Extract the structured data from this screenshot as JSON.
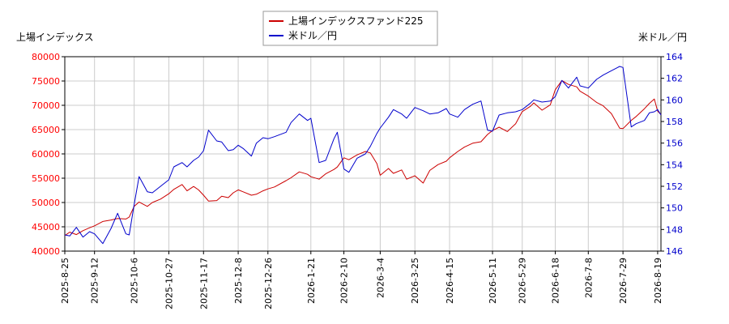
{
  "chart_data": {
    "type": "line",
    "legend_position": "top-center",
    "grid": true,
    "colors": {
      "left_axis": "#ff0000",
      "right_axis": "#0000cc",
      "series_0": "#cc0000",
      "series_1": "#0000cc",
      "grid": "#cccccc",
      "frame": "#000000"
    },
    "left_axis": {
      "title": "上場インデックス",
      "min": 40000,
      "max": 80000,
      "ticks": [
        "40000",
        "45000",
        "50000",
        "55000",
        "60000",
        "65000",
        "70000",
        "75000",
        "80000"
      ]
    },
    "right_axis": {
      "title": "米ドル／円",
      "min": 146,
      "max": 164,
      "ticks": [
        "146",
        "148",
        "150",
        "152",
        "154",
        "156",
        "158",
        "160",
        "162",
        "164"
      ]
    },
    "x_ticks": [
      "2025-8-25",
      "2025-9-12",
      "2025-10-6",
      "2025-10-27",
      "2025-11-17",
      "2025-12-8",
      "2025-12-26",
      "2026-1-21",
      "2026-2-10",
      "2026-3-4",
      "2026-3-25",
      "2026-4-15",
      "2026-5-11",
      "2026-5-29",
      "2026-6-18",
      "2026-7-8",
      "2026-7-29",
      "2026-8-19"
    ],
    "series": [
      {
        "name": "上場インデックスファンド225",
        "axis": "left",
        "points": [
          [
            "2025-8-25",
            43200
          ],
          [
            "2025-8-28",
            43900
          ],
          [
            "2025-9-1",
            43400
          ],
          [
            "2025-9-5",
            44200
          ],
          [
            "2025-9-9",
            44800
          ],
          [
            "2025-9-12",
            45200
          ],
          [
            "2025-9-17",
            46100
          ],
          [
            "2025-9-22",
            46400
          ],
          [
            "2025-9-26",
            46700
          ],
          [
            "2025-10-1",
            46600
          ],
          [
            "2025-10-3",
            47000
          ],
          [
            "2025-10-6",
            49200
          ],
          [
            "2025-10-9",
            50100
          ],
          [
            "2025-10-14",
            49200
          ],
          [
            "2025-10-17",
            50000
          ],
          [
            "2025-10-22",
            50700
          ],
          [
            "2025-10-27",
            51800
          ],
          [
            "2025-10-30",
            52700
          ],
          [
            "2025-11-4",
            53700
          ],
          [
            "2025-11-7",
            52400
          ],
          [
            "2025-11-11",
            53300
          ],
          [
            "2025-11-14",
            52600
          ],
          [
            "2025-11-17",
            51500
          ],
          [
            "2025-11-20",
            50300
          ],
          [
            "2025-11-25",
            50400
          ],
          [
            "2025-11-28",
            51300
          ],
          [
            "2025-12-2",
            51000
          ],
          [
            "2025-12-5",
            52000
          ],
          [
            "2025-12-8",
            52600
          ],
          [
            "2025-12-11",
            52200
          ],
          [
            "2025-12-16",
            51500
          ],
          [
            "2025-12-19",
            51700
          ],
          [
            "2025-12-23",
            52400
          ],
          [
            "2025-12-26",
            52800
          ],
          [
            "2025-12-30",
            53200
          ],
          [
            "2026-1-6",
            54500
          ],
          [
            "2026-1-9",
            55100
          ],
          [
            "2026-1-14",
            56300
          ],
          [
            "2026-1-19",
            55800
          ],
          [
            "2026-1-21",
            55300
          ],
          [
            "2026-1-26",
            54800
          ],
          [
            "2026-1-30",
            55900
          ],
          [
            "2026-2-4",
            56800
          ],
          [
            "2026-2-6",
            57300
          ],
          [
            "2026-2-10",
            59200
          ],
          [
            "2026-2-13",
            58800
          ],
          [
            "2026-2-18",
            59800
          ],
          [
            "2026-2-23",
            60500
          ],
          [
            "2026-2-26",
            60200
          ],
          [
            "2026-3-2",
            58000
          ],
          [
            "2026-3-4",
            55600
          ],
          [
            "2026-3-9",
            57000
          ],
          [
            "2026-3-12",
            56000
          ],
          [
            "2026-3-17",
            56700
          ],
          [
            "2026-3-20",
            54800
          ],
          [
            "2026-3-25",
            55500
          ],
          [
            "2026-3-30",
            54000
          ],
          [
            "2026-4-3",
            56600
          ],
          [
            "2026-4-8",
            57800
          ],
          [
            "2026-4-13",
            58500
          ],
          [
            "2026-4-15",
            59200
          ],
          [
            "2026-4-20",
            60500
          ],
          [
            "2026-4-24",
            61400
          ],
          [
            "2026-4-29",
            62200
          ],
          [
            "2026-5-4",
            62500
          ],
          [
            "2026-5-8",
            64000
          ],
          [
            "2026-5-11",
            64800
          ],
          [
            "2026-5-15",
            65500
          ],
          [
            "2026-5-20",
            64600
          ],
          [
            "2026-5-25",
            66200
          ],
          [
            "2026-5-29",
            68700
          ],
          [
            "2026-6-3",
            69800
          ],
          [
            "2026-6-5",
            70500
          ],
          [
            "2026-6-10",
            69000
          ],
          [
            "2026-6-15",
            70100
          ],
          [
            "2026-6-18",
            73200
          ],
          [
            "2026-6-22",
            75100
          ],
          [
            "2026-6-26",
            74300
          ],
          [
            "2026-7-1",
            73800
          ],
          [
            "2026-7-3",
            72900
          ],
          [
            "2026-7-8",
            71900
          ],
          [
            "2026-7-13",
            70600
          ],
          [
            "2026-7-17",
            69900
          ],
          [
            "2026-7-22",
            68300
          ],
          [
            "2026-7-27",
            65300
          ],
          [
            "2026-7-29",
            65200
          ],
          [
            "2026-8-3",
            66900
          ],
          [
            "2026-8-6",
            67700
          ],
          [
            "2026-8-11",
            69300
          ],
          [
            "2026-8-14",
            70400
          ],
          [
            "2026-8-17",
            71300
          ],
          [
            "2026-8-19",
            68800
          ],
          [
            "2026-8-21",
            68100
          ]
        ]
      },
      {
        "name": "米ドル／円",
        "axis": "right",
        "points": [
          [
            "2025-8-25",
            147.5
          ],
          [
            "2025-8-28",
            147.4
          ],
          [
            "2025-9-1",
            148.2
          ],
          [
            "2025-9-5",
            147.3
          ],
          [
            "2025-9-9",
            147.8
          ],
          [
            "2025-9-12",
            147.6
          ],
          [
            "2025-9-17",
            146.7
          ],
          [
            "2025-9-22",
            148.1
          ],
          [
            "2025-9-26",
            149.5
          ],
          [
            "2025-10-1",
            147.6
          ],
          [
            "2025-10-3",
            147.5
          ],
          [
            "2025-10-6",
            150.3
          ],
          [
            "2025-10-9",
            152.9
          ],
          [
            "2025-10-14",
            151.5
          ],
          [
            "2025-10-17",
            151.4
          ],
          [
            "2025-10-22",
            152.0
          ],
          [
            "2025-10-27",
            152.6
          ],
          [
            "2025-10-30",
            153.8
          ],
          [
            "2025-11-4",
            154.2
          ],
          [
            "2025-11-7",
            153.8
          ],
          [
            "2025-11-11",
            154.4
          ],
          [
            "2025-11-14",
            154.7
          ],
          [
            "2025-11-17",
            155.3
          ],
          [
            "2025-11-20",
            157.2
          ],
          [
            "2025-11-25",
            156.2
          ],
          [
            "2025-11-28",
            156.1
          ],
          [
            "2025-12-2",
            155.3
          ],
          [
            "2025-12-5",
            155.4
          ],
          [
            "2025-12-8",
            155.8
          ],
          [
            "2025-12-11",
            155.5
          ],
          [
            "2025-12-16",
            154.8
          ],
          [
            "2025-12-19",
            156.0
          ],
          [
            "2025-12-23",
            156.5
          ],
          [
            "2025-12-26",
            156.4
          ],
          [
            "2025-12-30",
            156.6
          ],
          [
            "2026-1-6",
            157.0
          ],
          [
            "2026-1-9",
            157.9
          ],
          [
            "2026-1-14",
            158.7
          ],
          [
            "2026-1-19",
            158.1
          ],
          [
            "2026-1-21",
            158.3
          ],
          [
            "2026-1-26",
            154.2
          ],
          [
            "2026-1-30",
            154.4
          ],
          [
            "2026-2-4",
            156.4
          ],
          [
            "2026-2-6",
            157.0
          ],
          [
            "2026-2-10",
            153.6
          ],
          [
            "2026-2-13",
            153.3
          ],
          [
            "2026-2-18",
            154.6
          ],
          [
            "2026-2-23",
            155.0
          ],
          [
            "2026-2-26",
            155.7
          ],
          [
            "2026-3-2",
            156.9
          ],
          [
            "2026-3-4",
            157.4
          ],
          [
            "2026-3-9",
            158.4
          ],
          [
            "2026-3-12",
            159.1
          ],
          [
            "2026-3-17",
            158.7
          ],
          [
            "2026-3-20",
            158.3
          ],
          [
            "2026-3-25",
            159.3
          ],
          [
            "2026-3-30",
            159.0
          ],
          [
            "2026-4-3",
            158.7
          ],
          [
            "2026-4-8",
            158.8
          ],
          [
            "2026-4-13",
            159.2
          ],
          [
            "2026-4-15",
            158.7
          ],
          [
            "2026-4-20",
            158.4
          ],
          [
            "2026-4-24",
            159.1
          ],
          [
            "2026-4-29",
            159.6
          ],
          [
            "2026-5-4",
            159.9
          ],
          [
            "2026-5-8",
            157.2
          ],
          [
            "2026-5-11",
            157.1
          ],
          [
            "2026-5-15",
            158.6
          ],
          [
            "2026-5-20",
            158.8
          ],
          [
            "2026-5-25",
            158.9
          ],
          [
            "2026-5-29",
            159.1
          ],
          [
            "2026-6-3",
            159.7
          ],
          [
            "2026-6-5",
            160.0
          ],
          [
            "2026-6-10",
            159.8
          ],
          [
            "2026-6-15",
            159.9
          ],
          [
            "2026-6-18",
            160.3
          ],
          [
            "2026-6-22",
            161.8
          ],
          [
            "2026-6-26",
            161.1
          ],
          [
            "2026-7-1",
            162.1
          ],
          [
            "2026-7-3",
            161.3
          ],
          [
            "2026-7-8",
            161.1
          ],
          [
            "2026-7-13",
            161.9
          ],
          [
            "2026-7-17",
            162.3
          ],
          [
            "2026-7-22",
            162.7
          ],
          [
            "2026-7-27",
            163.1
          ],
          [
            "2026-7-29",
            163.0
          ],
          [
            "2026-8-3",
            157.5
          ],
          [
            "2026-8-6",
            157.8
          ],
          [
            "2026-8-11",
            158.1
          ],
          [
            "2026-8-14",
            158.8
          ],
          [
            "2026-8-17",
            158.9
          ],
          [
            "2026-8-19",
            159.1
          ],
          [
            "2026-8-21",
            158.6
          ]
        ]
      }
    ]
  }
}
